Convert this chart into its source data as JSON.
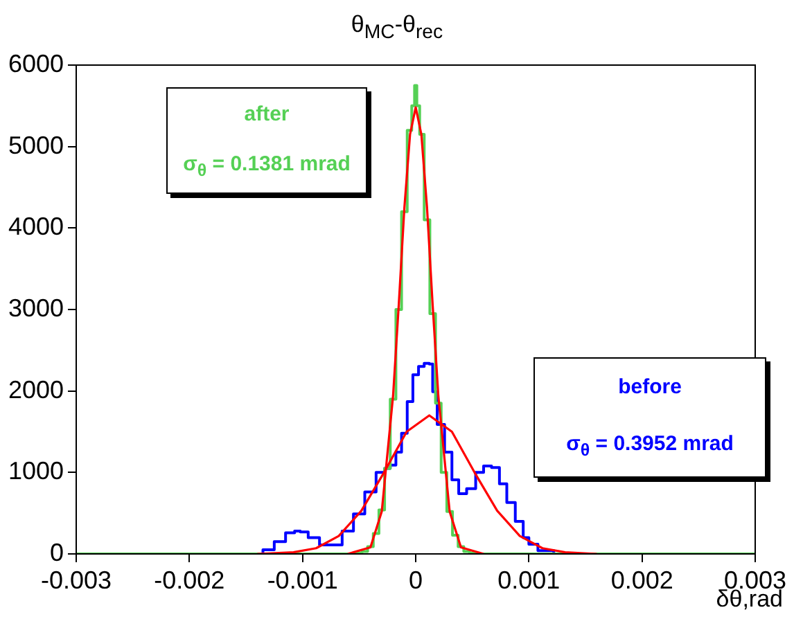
{
  "chart_data": {
    "type": "step",
    "title": "θ$_{MC}$-θ$_{rec}$",
    "xlabel": "δθ,rad",
    "xlim": [
      -0.003,
      0.003
    ],
    "xticks": [
      -0.003,
      -0.002,
      -0.001,
      0,
      0.001,
      0.002,
      0.003
    ],
    "ylim": [
      0,
      6000
    ],
    "yticks": [
      0,
      1000,
      2000,
      3000,
      4000,
      5000,
      6000
    ],
    "annotations": [
      "σ$_{θ}$ = 0.1381 mrad",
      "σ$_{θ}$ = 0.3952 mrad"
    ],
    "series": [
      {
        "name": "after",
        "color": "#55d055",
        "x": [
          -0.003,
          -0.0006,
          -0.0005,
          -0.00045,
          -0.0004,
          -0.00035,
          -0.0003,
          -0.00025,
          -0.0002,
          -0.00015,
          -0.0001,
          -5e-05,
          -2e-05,
          0,
          2e-05,
          5e-05,
          0.0001,
          0.00015,
          0.0002,
          0.00025,
          0.0003,
          0.00035,
          0.0004,
          0.00045,
          0.0005,
          0.0006,
          0.003
        ],
        "values": [
          0,
          0,
          10,
          30,
          90,
          250,
          540,
          1050,
          1900,
          3000,
          4200,
          5200,
          5500,
          5750,
          5500,
          5150,
          4100,
          2950,
          1850,
          1000,
          520,
          230,
          90,
          30,
          10,
          0,
          0
        ]
      },
      {
        "name": "before",
        "color": "#0000ff",
        "x": [
          -0.003,
          -0.0014,
          -0.0013,
          -0.0012,
          -0.0011,
          -0.00104,
          -0.001,
          -0.0009,
          -0.0008,
          -0.0007,
          -0.0006,
          -0.0005,
          -0.0004,
          -0.0003,
          -0.00025,
          -0.0002,
          -0.00015,
          -0.0001,
          -5e-05,
          0,
          5e-05,
          0.0001,
          0.00014,
          0.00016,
          0.00022,
          0.00029,
          0.00035,
          0.00041,
          0.00049,
          0.00057,
          0.00063,
          0.00071,
          0.00077,
          0.00084,
          0.00092,
          0.00098,
          0.00102,
          0.00114,
          0.0013,
          0.003
        ],
        "values": [
          0,
          0,
          50,
          150,
          260,
          280,
          270,
          200,
          110,
          110,
          280,
          490,
          760,
          1000,
          1050,
          1090,
          1250,
          1480,
          1870,
          2200,
          2300,
          2340,
          2330,
          1990,
          1590,
          1250,
          910,
          740,
          800,
          1000,
          1080,
          1060,
          860,
          630,
          400,
          200,
          120,
          40,
          0,
          0
        ]
      },
      {
        "type": "line",
        "color": "#ff0000",
        "x": [
          -0.0006,
          -0.0004,
          -0.0003,
          -0.0002,
          -0.00015,
          -0.0001,
          -5e-05,
          0,
          5e-05,
          0.0001,
          0.00015,
          0.0002,
          0.0003,
          0.0004,
          0.0006
        ],
        "values": [
          0,
          80,
          520,
          1940,
          3050,
          4250,
          5150,
          5480,
          5150,
          4250,
          3050,
          1940,
          520,
          80,
          0
        ]
      },
      {
        "type": "line",
        "color": "#ff0000",
        "x": [
          -0.0014,
          -0.00108,
          -0.00088,
          -0.00068,
          -0.00048,
          -0.00028,
          -8e-05,
          0.00012,
          0.00032,
          0.00052,
          0.00072,
          0.00092,
          0.00112,
          0.00132,
          0.0016
        ],
        "values": [
          0,
          20,
          70,
          220,
          530,
          1000,
          1500,
          1700,
          1500,
          1000,
          530,
          220,
          70,
          20,
          0
        ]
      }
    ]
  }
}
